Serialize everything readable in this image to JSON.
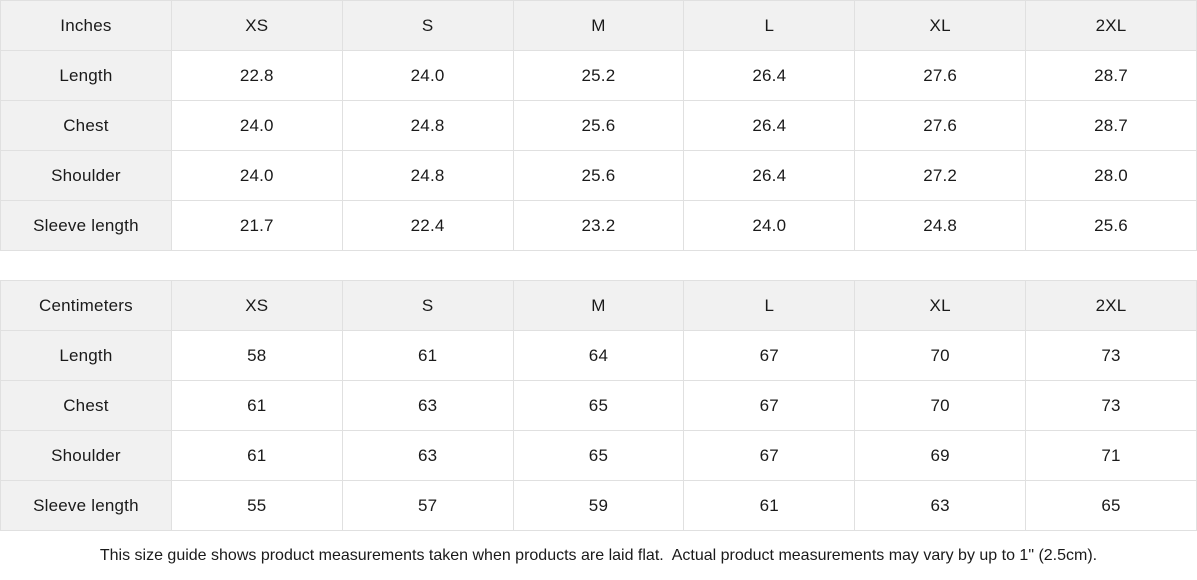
{
  "colors": {
    "background": "#ffffff",
    "header_bg": "#f1f1f1",
    "border": "#e0e0e0",
    "text": "#1a1a1a"
  },
  "chart_data": [
    {
      "type": "table",
      "unit": "Inches",
      "columns": [
        "XS",
        "S",
        "M",
        "L",
        "XL",
        "2XL"
      ],
      "rows": [
        {
          "label": "Length",
          "values": [
            "22.8",
            "24.0",
            "25.2",
            "26.4",
            "27.6",
            "28.7"
          ]
        },
        {
          "label": "Chest",
          "values": [
            "24.0",
            "24.8",
            "25.6",
            "26.4",
            "27.6",
            "28.7"
          ]
        },
        {
          "label": "Shoulder",
          "values": [
            "24.0",
            "24.8",
            "25.6",
            "26.4",
            "27.2",
            "28.0"
          ]
        },
        {
          "label": "Sleeve length",
          "values": [
            "21.7",
            "22.4",
            "23.2",
            "24.0",
            "24.8",
            "25.6"
          ]
        }
      ]
    },
    {
      "type": "table",
      "unit": "Centimeters",
      "columns": [
        "XS",
        "S",
        "M",
        "L",
        "XL",
        "2XL"
      ],
      "rows": [
        {
          "label": "Length",
          "values": [
            "58",
            "61",
            "64",
            "67",
            "70",
            "73"
          ]
        },
        {
          "label": "Chest",
          "values": [
            "61",
            "63",
            "65",
            "67",
            "70",
            "73"
          ]
        },
        {
          "label": "Shoulder",
          "values": [
            "61",
            "63",
            "65",
            "67",
            "69",
            "71"
          ]
        },
        {
          "label": "Sleeve length",
          "values": [
            "55",
            "57",
            "59",
            "61",
            "63",
            "65"
          ]
        }
      ]
    }
  ],
  "footer": {
    "note": "This size guide shows product measurements taken when products are laid flat.  Actual product measurements may vary by up to 1\" (2.5cm)."
  }
}
